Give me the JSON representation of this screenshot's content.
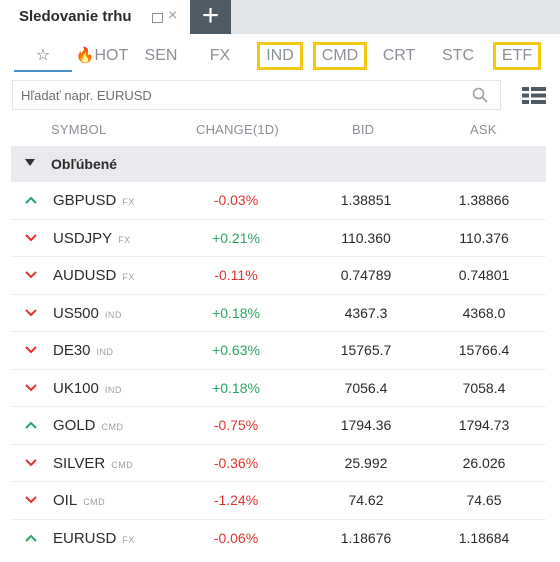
{
  "window": {
    "title": "Sledovanie trhu",
    "close_glyph": "×",
    "add_glyph": "+"
  },
  "categories": [
    {
      "label": "☆",
      "id": "favorites",
      "highlighted": false
    },
    {
      "label": "HOT",
      "id": "hot",
      "highlighted": false
    },
    {
      "label": "SEN",
      "id": "sen",
      "highlighted": false
    },
    {
      "label": "FX",
      "id": "fx",
      "highlighted": false
    },
    {
      "label": "IND",
      "id": "ind",
      "highlighted": true
    },
    {
      "label": "CMD",
      "id": "cmd",
      "highlighted": true
    },
    {
      "label": "CRT",
      "id": "crt",
      "highlighted": false
    },
    {
      "label": "STC",
      "id": "stc",
      "highlighted": false
    },
    {
      "label": "ETF",
      "id": "etf",
      "highlighted": true
    }
  ],
  "highlight_color": "#f2c811",
  "search": {
    "placeholder": "Hľadať napr. EURUSD",
    "value": ""
  },
  "columns": {
    "symbol": "SYMBOL",
    "change": "CHANGE(1D)",
    "bid": "BID",
    "ask": "ASK"
  },
  "group": {
    "label": "Obľúbené"
  },
  "colors": {
    "negative": "#e0342f",
    "positive": "#2aa465"
  },
  "rows": [
    {
      "symbol": "GBPUSD",
      "type": "FX",
      "direction": "up",
      "change": "-0.03%",
      "change_sign": "neg",
      "bid": "1.38851",
      "ask": "1.38866"
    },
    {
      "symbol": "USDJPY",
      "type": "FX",
      "direction": "down",
      "change": "+0.21%",
      "change_sign": "pos",
      "bid": "110.360",
      "ask": "110.376"
    },
    {
      "symbol": "AUDUSD",
      "type": "FX",
      "direction": "down",
      "change": "-0.11%",
      "change_sign": "neg",
      "bid": "0.74789",
      "ask": "0.74801"
    },
    {
      "symbol": "US500",
      "type": "IND",
      "direction": "down",
      "change": "+0.18%",
      "change_sign": "pos",
      "bid": "4367.3",
      "ask": "4368.0"
    },
    {
      "symbol": "DE30",
      "type": "IND",
      "direction": "down",
      "change": "+0.63%",
      "change_sign": "pos",
      "bid": "15765.7",
      "ask": "15766.4"
    },
    {
      "symbol": "UK100",
      "type": "IND",
      "direction": "down",
      "change": "+0.18%",
      "change_sign": "pos",
      "bid": "7056.4",
      "ask": "7058.4"
    },
    {
      "symbol": "GOLD",
      "type": "CMD",
      "direction": "up",
      "change": "-0.75%",
      "change_sign": "neg",
      "bid": "1794.36",
      "ask": "1794.73"
    },
    {
      "symbol": "SILVER",
      "type": "CMD",
      "direction": "down",
      "change": "-0.36%",
      "change_sign": "neg",
      "bid": "25.992",
      "ask": "26.026"
    },
    {
      "symbol": "OIL",
      "type": "CMD",
      "direction": "down",
      "change": "-1.24%",
      "change_sign": "neg",
      "bid": "74.62",
      "ask": "74.65"
    },
    {
      "symbol": "EURUSD",
      "type": "FX",
      "direction": "up",
      "change": "-0.06%",
      "change_sign": "neg",
      "bid": "1.18676",
      "ask": "1.18684"
    }
  ]
}
